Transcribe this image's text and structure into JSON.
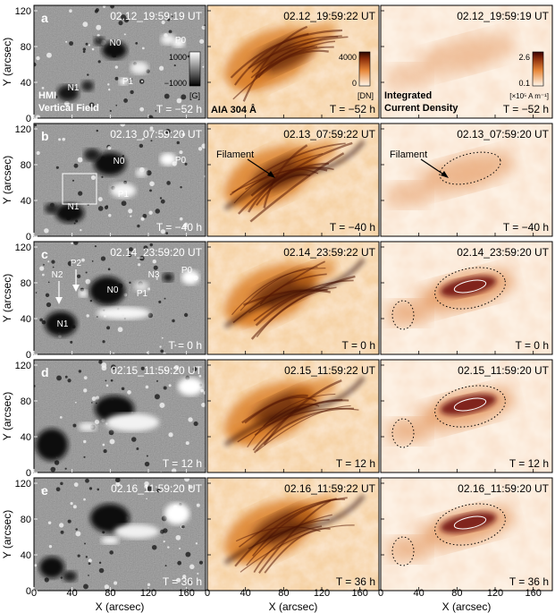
{
  "figure": {
    "y_axis_label": "Y (arcsec)",
    "x_axis_label": "X (arcsec)",
    "y_ticks": [
      "0",
      "40",
      "80",
      "120"
    ],
    "x_ticks": [
      "0",
      "40",
      "80",
      "120",
      "160"
    ],
    "rows": [
      {
        "letter": "a",
        "hmi_time": "02.12_19:59:19 UT",
        "aia_time": "02.12_19:59:22 UT",
        "cur_time": "02.12_19:59:19 UT",
        "t_label": "T = −52 h",
        "hmi_labels": [
          "N0",
          "P0",
          "N1",
          "P1"
        ],
        "hmi_title_1": "HMI",
        "hmi_title_2": "Vertical Field",
        "aia_title": "AIA 304 Å",
        "cur_title_1": "Integrated",
        "cur_title_2": "Current Density"
      },
      {
        "letter": "b",
        "hmi_time": "02.13_07:59:20 UT",
        "aia_time": "02.13_07:59:22 UT",
        "cur_time": "02.13_07:59:20 UT",
        "t_label": "T = −40 h",
        "hmi_labels": [
          "N0",
          "P0",
          "N1",
          "P1"
        ],
        "aia_annotation": "Filament",
        "cur_annotation": "Filament"
      },
      {
        "letter": "c",
        "hmi_time": "02.14_23:59:20 UT",
        "aia_time": "02.14_23:59:22 UT",
        "cur_time": "02.14_23:59:20 UT",
        "t_label": "T = 0 h",
        "hmi_labels": [
          "N2",
          "P2",
          "N0",
          "N3",
          "P0",
          "P1",
          "N1"
        ]
      },
      {
        "letter": "d",
        "hmi_time": "02.15_11:59:20 UT",
        "aia_time": "02.15_11:59:22 UT",
        "cur_time": "02.15_11:59:20 UT",
        "t_label": "T = 12 h"
      },
      {
        "letter": "e",
        "hmi_time": "02.16_11:59:20 UT",
        "aia_time": "02.16_11:59:22 UT",
        "cur_time": "02.16_11:59:20 UT",
        "t_label": "T = 36 h"
      }
    ],
    "hmi_colorbar": {
      "max": "1000",
      "min": "−1000",
      "unit": "[G]"
    },
    "aia_colorbar": {
      "max": "4000",
      "min": "0",
      "unit": "[DN]"
    },
    "cur_colorbar": {
      "max": "2.6",
      "min": "0.1",
      "unit": "[×10⁵ A m⁻¹]"
    },
    "colors": {
      "hmi_background": "#8a8a8a",
      "aia_low": "#fbe6cf",
      "aia_mid": "#d9781f",
      "aia_high": "#5a1a05",
      "cur_low": "#fdf1e4",
      "cur_mid": "#e08a4c",
      "cur_high": "#6e1010"
    }
  }
}
